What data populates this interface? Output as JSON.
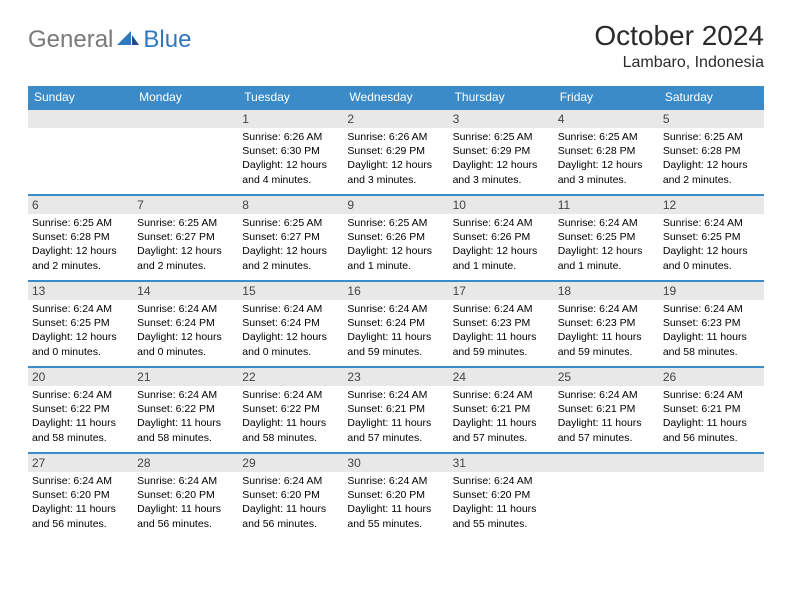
{
  "logo": {
    "general": "General",
    "blue": "Blue"
  },
  "title": "October 2024",
  "location": "Lambaro, Indonesia",
  "colors": {
    "header_bg": "#3b8bc9",
    "header_text": "#ffffff",
    "daynum_bg": "#e8e8e8",
    "border": "#3b8bc9",
    "logo_gray": "#7a7a7a",
    "logo_blue": "#2f78c0"
  },
  "day_headers": [
    "Sunday",
    "Monday",
    "Tuesday",
    "Wednesday",
    "Thursday",
    "Friday",
    "Saturday"
  ],
  "weeks": [
    [
      {
        "blank": true
      },
      {
        "blank": true
      },
      {
        "n": "1",
        "sr": "Sunrise: 6:26 AM",
        "ss": "Sunset: 6:30 PM",
        "dl": "Daylight: 12 hours and 4 minutes."
      },
      {
        "n": "2",
        "sr": "Sunrise: 6:26 AM",
        "ss": "Sunset: 6:29 PM",
        "dl": "Daylight: 12 hours and 3 minutes."
      },
      {
        "n": "3",
        "sr": "Sunrise: 6:25 AM",
        "ss": "Sunset: 6:29 PM",
        "dl": "Daylight: 12 hours and 3 minutes."
      },
      {
        "n": "4",
        "sr": "Sunrise: 6:25 AM",
        "ss": "Sunset: 6:28 PM",
        "dl": "Daylight: 12 hours and 3 minutes."
      },
      {
        "n": "5",
        "sr": "Sunrise: 6:25 AM",
        "ss": "Sunset: 6:28 PM",
        "dl": "Daylight: 12 hours and 2 minutes."
      }
    ],
    [
      {
        "n": "6",
        "sr": "Sunrise: 6:25 AM",
        "ss": "Sunset: 6:28 PM",
        "dl": "Daylight: 12 hours and 2 minutes."
      },
      {
        "n": "7",
        "sr": "Sunrise: 6:25 AM",
        "ss": "Sunset: 6:27 PM",
        "dl": "Daylight: 12 hours and 2 minutes."
      },
      {
        "n": "8",
        "sr": "Sunrise: 6:25 AM",
        "ss": "Sunset: 6:27 PM",
        "dl": "Daylight: 12 hours and 2 minutes."
      },
      {
        "n": "9",
        "sr": "Sunrise: 6:25 AM",
        "ss": "Sunset: 6:26 PM",
        "dl": "Daylight: 12 hours and 1 minute."
      },
      {
        "n": "10",
        "sr": "Sunrise: 6:24 AM",
        "ss": "Sunset: 6:26 PM",
        "dl": "Daylight: 12 hours and 1 minute."
      },
      {
        "n": "11",
        "sr": "Sunrise: 6:24 AM",
        "ss": "Sunset: 6:25 PM",
        "dl": "Daylight: 12 hours and 1 minute."
      },
      {
        "n": "12",
        "sr": "Sunrise: 6:24 AM",
        "ss": "Sunset: 6:25 PM",
        "dl": "Daylight: 12 hours and 0 minutes."
      }
    ],
    [
      {
        "n": "13",
        "sr": "Sunrise: 6:24 AM",
        "ss": "Sunset: 6:25 PM",
        "dl": "Daylight: 12 hours and 0 minutes."
      },
      {
        "n": "14",
        "sr": "Sunrise: 6:24 AM",
        "ss": "Sunset: 6:24 PM",
        "dl": "Daylight: 12 hours and 0 minutes."
      },
      {
        "n": "15",
        "sr": "Sunrise: 6:24 AM",
        "ss": "Sunset: 6:24 PM",
        "dl": "Daylight: 12 hours and 0 minutes."
      },
      {
        "n": "16",
        "sr": "Sunrise: 6:24 AM",
        "ss": "Sunset: 6:24 PM",
        "dl": "Daylight: 11 hours and 59 minutes."
      },
      {
        "n": "17",
        "sr": "Sunrise: 6:24 AM",
        "ss": "Sunset: 6:23 PM",
        "dl": "Daylight: 11 hours and 59 minutes."
      },
      {
        "n": "18",
        "sr": "Sunrise: 6:24 AM",
        "ss": "Sunset: 6:23 PM",
        "dl": "Daylight: 11 hours and 59 minutes."
      },
      {
        "n": "19",
        "sr": "Sunrise: 6:24 AM",
        "ss": "Sunset: 6:23 PM",
        "dl": "Daylight: 11 hours and 58 minutes."
      }
    ],
    [
      {
        "n": "20",
        "sr": "Sunrise: 6:24 AM",
        "ss": "Sunset: 6:22 PM",
        "dl": "Daylight: 11 hours and 58 minutes."
      },
      {
        "n": "21",
        "sr": "Sunrise: 6:24 AM",
        "ss": "Sunset: 6:22 PM",
        "dl": "Daylight: 11 hours and 58 minutes."
      },
      {
        "n": "22",
        "sr": "Sunrise: 6:24 AM",
        "ss": "Sunset: 6:22 PM",
        "dl": "Daylight: 11 hours and 58 minutes."
      },
      {
        "n": "23",
        "sr": "Sunrise: 6:24 AM",
        "ss": "Sunset: 6:21 PM",
        "dl": "Daylight: 11 hours and 57 minutes."
      },
      {
        "n": "24",
        "sr": "Sunrise: 6:24 AM",
        "ss": "Sunset: 6:21 PM",
        "dl": "Daylight: 11 hours and 57 minutes."
      },
      {
        "n": "25",
        "sr": "Sunrise: 6:24 AM",
        "ss": "Sunset: 6:21 PM",
        "dl": "Daylight: 11 hours and 57 minutes."
      },
      {
        "n": "26",
        "sr": "Sunrise: 6:24 AM",
        "ss": "Sunset: 6:21 PM",
        "dl": "Daylight: 11 hours and 56 minutes."
      }
    ],
    [
      {
        "n": "27",
        "sr": "Sunrise: 6:24 AM",
        "ss": "Sunset: 6:20 PM",
        "dl": "Daylight: 11 hours and 56 minutes."
      },
      {
        "n": "28",
        "sr": "Sunrise: 6:24 AM",
        "ss": "Sunset: 6:20 PM",
        "dl": "Daylight: 11 hours and 56 minutes."
      },
      {
        "n": "29",
        "sr": "Sunrise: 6:24 AM",
        "ss": "Sunset: 6:20 PM",
        "dl": "Daylight: 11 hours and 56 minutes."
      },
      {
        "n": "30",
        "sr": "Sunrise: 6:24 AM",
        "ss": "Sunset: 6:20 PM",
        "dl": "Daylight: 11 hours and 55 minutes."
      },
      {
        "n": "31",
        "sr": "Sunrise: 6:24 AM",
        "ss": "Sunset: 6:20 PM",
        "dl": "Daylight: 11 hours and 55 minutes."
      },
      {
        "blank": true
      },
      {
        "blank": true
      }
    ]
  ]
}
